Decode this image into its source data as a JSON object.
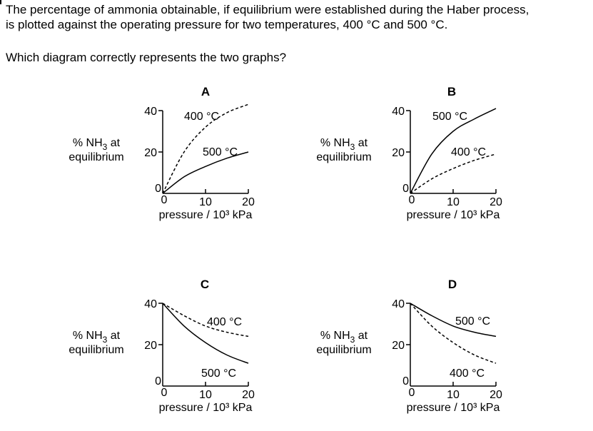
{
  "question": {
    "line1": "The percentage of ammonia obtainable, if equilibrium were established during the Haber process,",
    "line2": "is plotted against the operating pressure for two temperatures, 400 °C and 500 °C.",
    "prompt": "Which diagram correctly represents the two graphs?"
  },
  "graph_common": {
    "y_label_1": "% NH",
    "y_label_sub": "3",
    "y_label_2": " at",
    "y_label_3": "equilibrium",
    "x_label": "pressure / 10³ kPa",
    "y_ticks": [
      "0",
      "20",
      "40"
    ],
    "x_ticks": [
      "0",
      "10",
      "20"
    ]
  },
  "chart_data": [
    {
      "type": "line",
      "label": "A",
      "x": [
        0,
        5,
        10,
        15,
        20
      ],
      "series": [
        {
          "name": "400 °C",
          "style": "dashed",
          "values": [
            0,
            20,
            32,
            39,
            43
          ]
        },
        {
          "name": "500 °C",
          "style": "solid",
          "values": [
            0,
            8,
            13,
            17,
            20
          ]
        }
      ],
      "xlabel": "pressure / 10³ kPa",
      "ylabel": "% NH3 at equilibrium",
      "xlim": [
        0,
        20
      ],
      "ylim": [
        0,
        40
      ]
    },
    {
      "type": "line",
      "label": "B",
      "x": [
        0,
        5,
        10,
        15,
        20
      ],
      "series": [
        {
          "name": "500 °C",
          "style": "solid",
          "values": [
            0,
            19,
            30,
            36,
            41
          ]
        },
        {
          "name": "400 °C",
          "style": "dashed",
          "values": [
            0,
            7,
            12,
            16,
            19
          ]
        }
      ],
      "xlabel": "pressure / 10³ kPa",
      "ylabel": "% NH3 at equilibrium",
      "xlim": [
        0,
        20
      ],
      "ylim": [
        0,
        40
      ]
    },
    {
      "type": "line",
      "label": "C",
      "x": [
        0,
        5,
        10,
        15,
        20
      ],
      "series": [
        {
          "name": "400 °C",
          "style": "dashed",
          "values": [
            40,
            34,
            29,
            26,
            24
          ]
        },
        {
          "name": "500 °C",
          "style": "solid",
          "values": [
            40,
            29,
            21,
            15,
            11
          ]
        }
      ],
      "xlabel": "pressure / 10³ kPa",
      "ylabel": "% NH3 at equilibrium",
      "xlim": [
        0,
        20
      ],
      "ylim": [
        0,
        40
      ]
    },
    {
      "type": "line",
      "label": "D",
      "x": [
        0,
        5,
        10,
        15,
        20
      ],
      "series": [
        {
          "name": "500 °C",
          "style": "solid",
          "values": [
            40,
            34,
            29,
            26,
            24
          ]
        },
        {
          "name": "400 °C",
          "style": "dashed",
          "values": [
            40,
            29,
            21,
            15,
            11
          ]
        }
      ],
      "xlabel": "pressure / 10³ kPa",
      "ylabel": "% NH3 at equilibrium",
      "xlim": [
        0,
        20
      ],
      "ylim": [
        0,
        40
      ]
    }
  ]
}
